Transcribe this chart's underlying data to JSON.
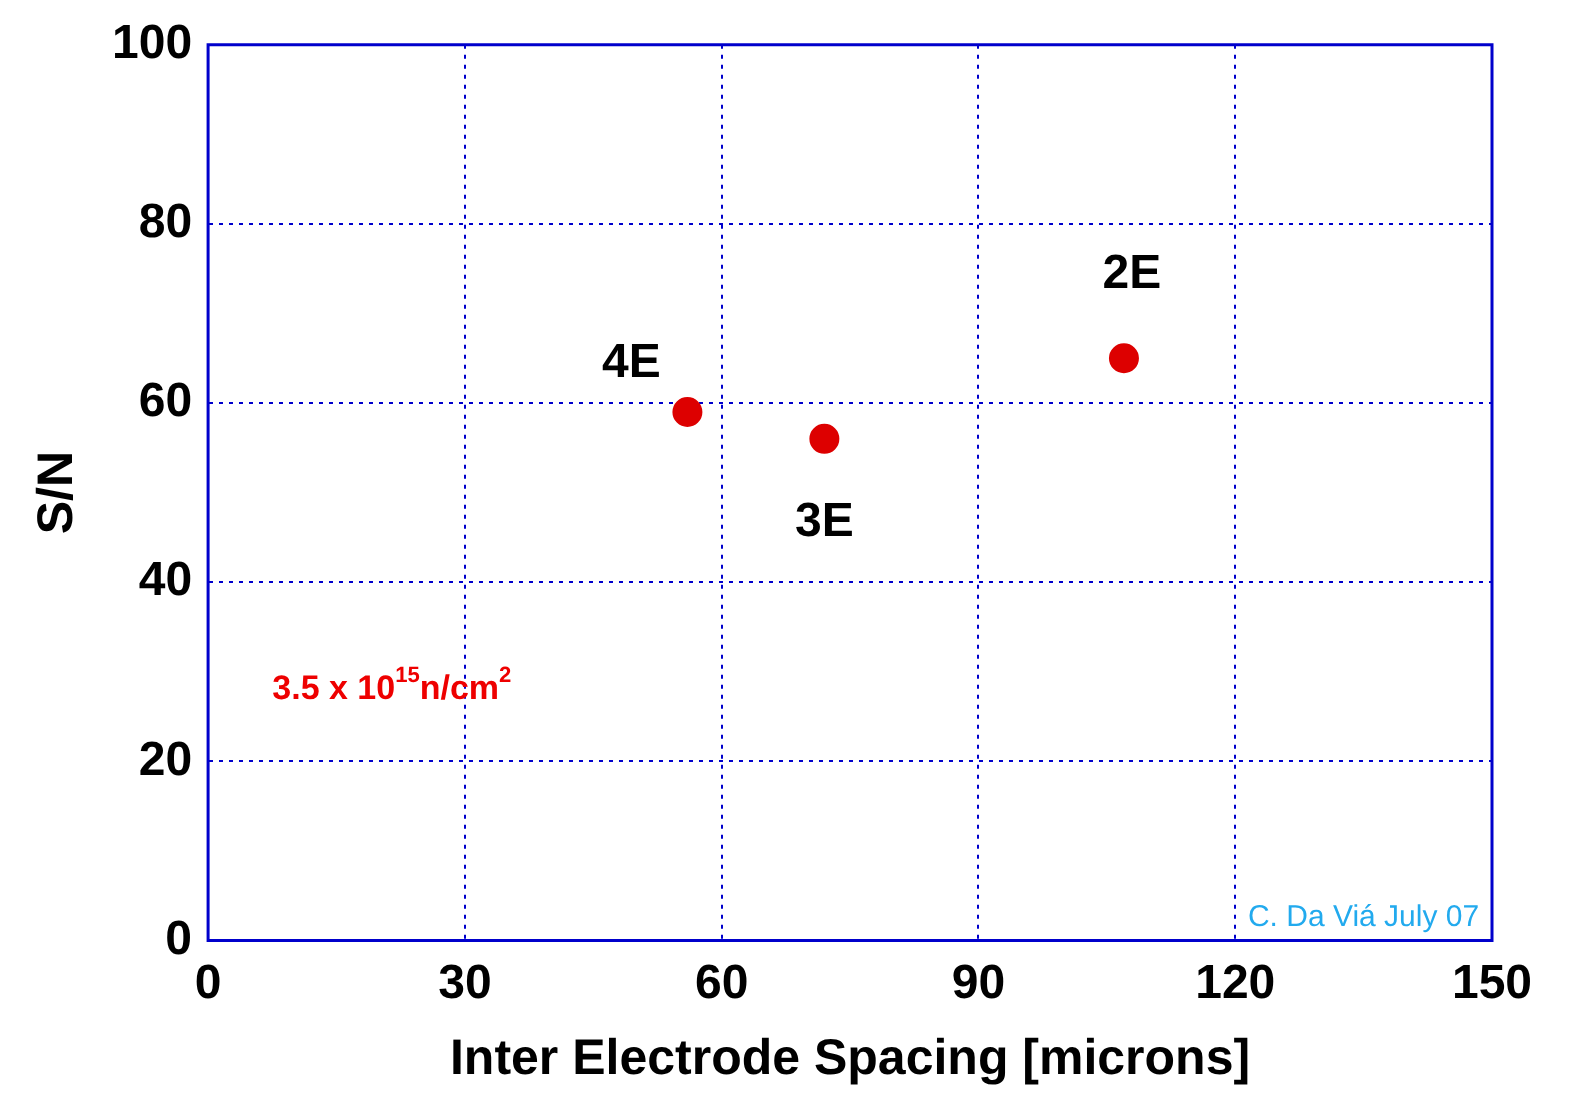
{
  "chart_data": {
    "type": "scatter",
    "xlabel": "Inter Electrode Spacing [microns]",
    "ylabel": "S/N",
    "x": [
      56,
      72,
      107
    ],
    "values": [
      59,
      56,
      65
    ],
    "color": "#dd0000",
    "marker": "circle",
    "xlim": [
      0,
      150
    ],
    "xticks": [
      0,
      30,
      60,
      90,
      120,
      150
    ],
    "ylim": [
      0,
      100
    ],
    "yticks": [
      0,
      20,
      40,
      60,
      80,
      100
    ],
    "grid": true,
    "legend": false,
    "annotations": [
      {
        "text": "4E",
        "x": 56,
        "y": 59
      },
      {
        "text": "3E",
        "x": 72,
        "y": 56
      },
      {
        "text": "2E",
        "x": 107,
        "y": 65
      },
      "3.5 x 10$^{15}$n/cm$^{2}$",
      "C. Da Viá July 07"
    ]
  }
}
